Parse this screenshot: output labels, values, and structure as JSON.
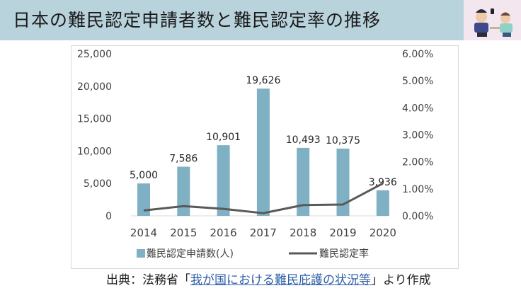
{
  "header": {
    "title": "日本の難民認定申請者数と難民認定率の推移"
  },
  "source": {
    "prefix": "出典：法務省「",
    "link_text": "我が国における難民庇護の状況等",
    "suffix": "」より作成"
  },
  "colors": {
    "bar": "#7fb0c3",
    "line": "#595959",
    "header_band": "#b9d3dd",
    "link": "#2f5fa8"
  },
  "chart_data": {
    "type": "bar",
    "title": "",
    "categories": [
      "2014",
      "2015",
      "2016",
      "2017",
      "2018",
      "2019",
      "2020"
    ],
    "series": [
      {
        "name": "難民認定申請数(人)",
        "type": "bar",
        "axis": "left",
        "values": [
          5000,
          7586,
          10901,
          19626,
          10493,
          10375,
          3936
        ],
        "labels": [
          "5,000",
          "7,586",
          "10,901",
          "19,626",
          "10,493",
          "10,375",
          "3,936"
        ]
      },
      {
        "name": "難民認定率",
        "type": "line",
        "axis": "right",
        "values": [
          0.2,
          0.36,
          0.26,
          0.1,
          0.4,
          0.42,
          1.2
        ]
      }
    ],
    "y_left": {
      "ylim": [
        0,
        25000
      ],
      "ticks": [
        0,
        5000,
        10000,
        15000,
        20000,
        25000
      ],
      "tick_labels": [
        "0",
        "5,000",
        "10,000",
        "15,000",
        "20,000",
        "25,000"
      ]
    },
    "y_right": {
      "ylim": [
        0,
        6
      ],
      "ticks": [
        0,
        1,
        2,
        3,
        4,
        5,
        6
      ],
      "tick_labels": [
        "0.00%",
        "1.00%",
        "2.00%",
        "3.00%",
        "4.00%",
        "5.00%",
        "6.00%"
      ]
    },
    "grid": false,
    "legend": "bottom"
  }
}
